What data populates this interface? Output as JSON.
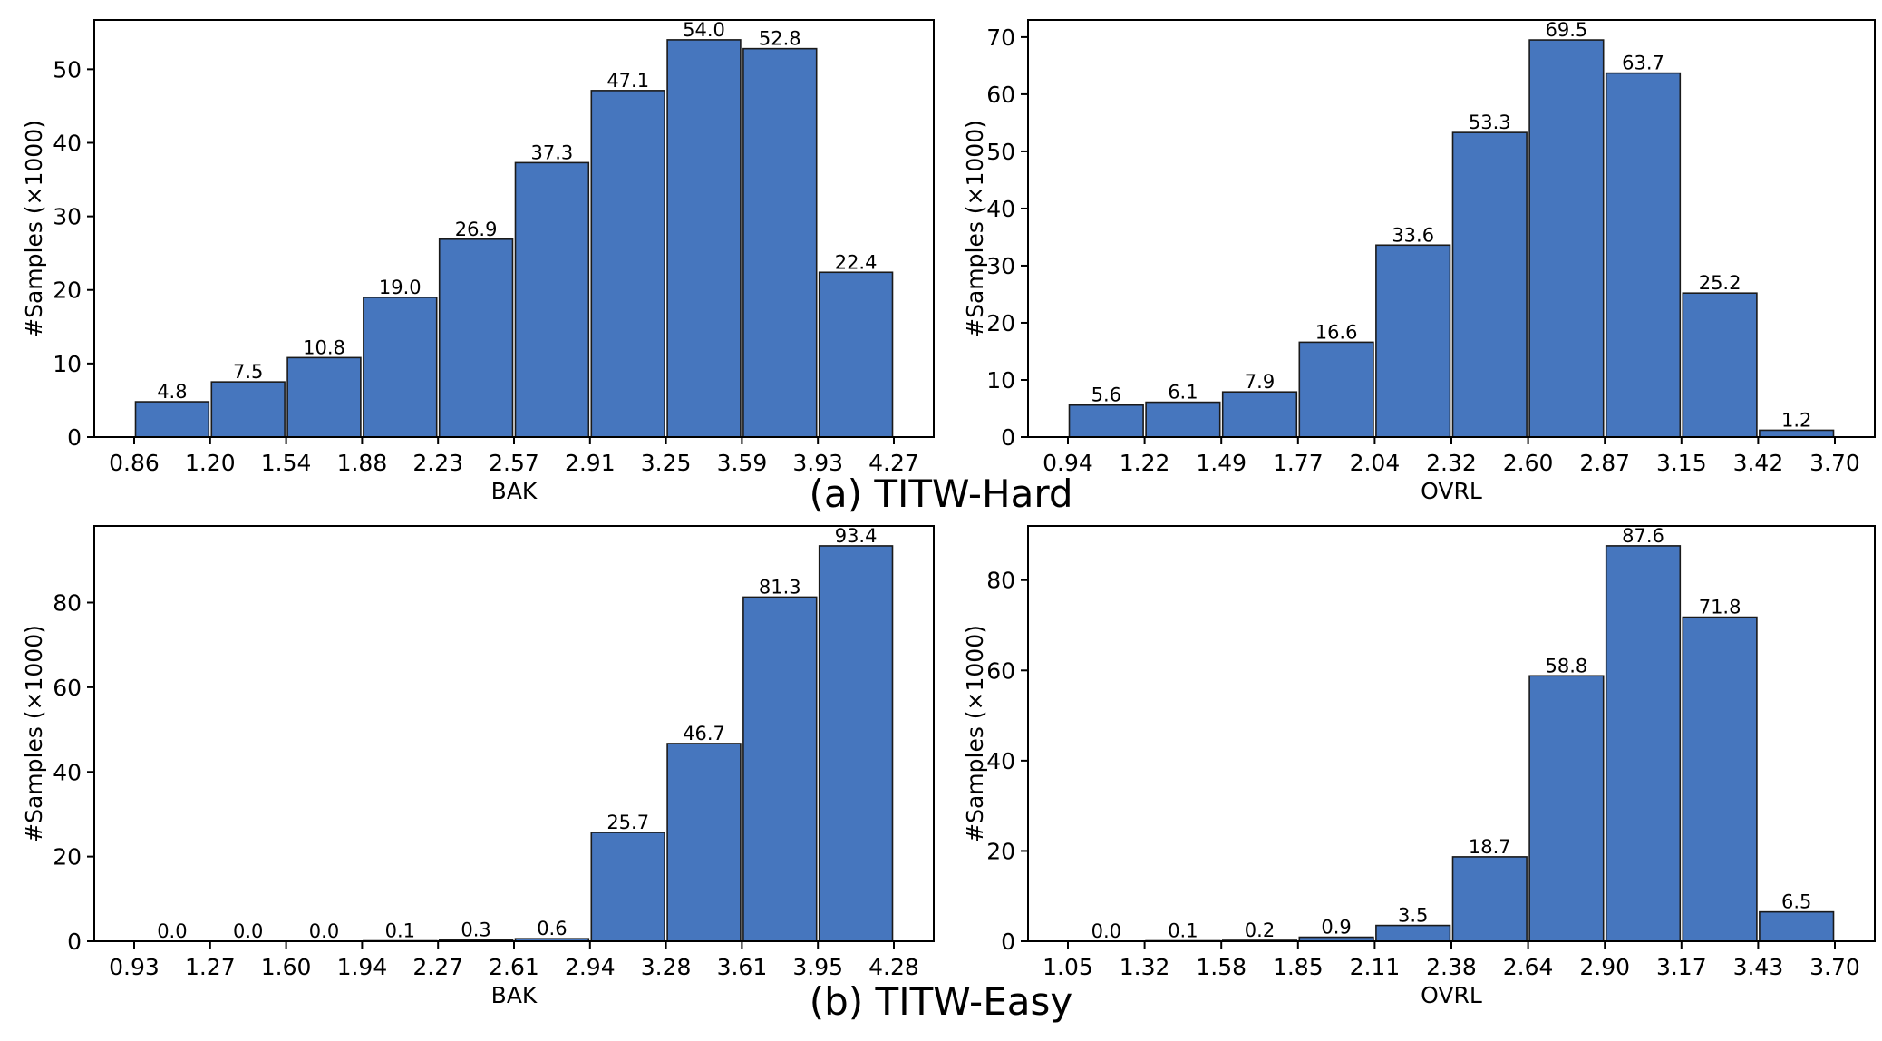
{
  "captions": {
    "hard": "(a) TITW-Hard",
    "easy": "(b) TITW-Easy"
  },
  "bar_color": "#4676be",
  "chart_data": [
    {
      "type": "bar",
      "group": "(a) TITW-Hard",
      "xlabel": "BAK",
      "ylabel": "#Samples (×1000)",
      "bin_edges": [
        "0.86",
        "1.20",
        "1.54",
        "1.88",
        "2.23",
        "2.57",
        "2.91",
        "3.25",
        "3.59",
        "3.93",
        "4.27"
      ],
      "values": [
        4.8,
        7.5,
        10.8,
        19.0,
        26.9,
        37.3,
        47.1,
        54.0,
        52.8,
        22.4
      ],
      "value_labels": [
        "4.8",
        "7.5",
        "10.8",
        "19.0",
        "26.9",
        "37.3",
        "47.1",
        "54.0",
        "52.8",
        "22.4"
      ],
      "yticks": [
        0,
        10,
        20,
        30,
        40,
        50
      ],
      "ylim": [
        0,
        56.7
      ]
    },
    {
      "type": "bar",
      "group": "(a) TITW-Hard",
      "xlabel": "OVRL",
      "ylabel": "#Samples (×1000)",
      "bin_edges": [
        "0.94",
        "1.22",
        "1.49",
        "1.77",
        "2.04",
        "2.32",
        "2.60",
        "2.87",
        "3.15",
        "3.42",
        "3.70"
      ],
      "values": [
        5.6,
        6.1,
        7.9,
        16.6,
        33.6,
        53.3,
        69.5,
        63.7,
        25.2,
        1.2
      ],
      "value_labels": [
        "5.6",
        "6.1",
        "7.9",
        "16.6",
        "33.6",
        "53.3",
        "69.5",
        "63.7",
        "25.2",
        "1.2"
      ],
      "yticks": [
        0,
        10,
        20,
        30,
        40,
        50,
        60,
        70
      ],
      "ylim": [
        0,
        73.0
      ]
    },
    {
      "type": "bar",
      "group": "(b) TITW-Easy",
      "xlabel": "BAK",
      "ylabel": "#Samples (×1000)",
      "bin_edges": [
        "0.93",
        "1.27",
        "1.60",
        "1.94",
        "2.27",
        "2.61",
        "2.94",
        "3.28",
        "3.61",
        "3.95",
        "4.28"
      ],
      "values": [
        0.0,
        0.0,
        0.0,
        0.1,
        0.3,
        0.6,
        25.7,
        46.7,
        81.3,
        93.4
      ],
      "value_labels": [
        "0.0",
        "0.0",
        "0.0",
        "0.1",
        "0.3",
        "0.6",
        "25.7",
        "46.7",
        "81.3",
        "93.4"
      ],
      "yticks": [
        0,
        20,
        40,
        60,
        80
      ],
      "ylim": [
        0,
        98.1
      ]
    },
    {
      "type": "bar",
      "group": "(b) TITW-Easy",
      "xlabel": "OVRL",
      "ylabel": "#Samples (×1000)",
      "bin_edges": [
        "1.05",
        "1.32",
        "1.58",
        "1.85",
        "2.11",
        "2.38",
        "2.64",
        "2.90",
        "3.17",
        "3.43",
        "3.70"
      ],
      "values": [
        0.0,
        0.1,
        0.2,
        0.9,
        3.5,
        18.7,
        58.8,
        87.6,
        71.8,
        6.5
      ],
      "value_labels": [
        "0.0",
        "0.1",
        "0.2",
        "0.9",
        "3.5",
        "18.7",
        "58.8",
        "87.6",
        "71.8",
        "6.5"
      ],
      "yticks": [
        0,
        20,
        40,
        60,
        80
      ],
      "ylim": [
        0,
        92.0
      ]
    }
  ]
}
